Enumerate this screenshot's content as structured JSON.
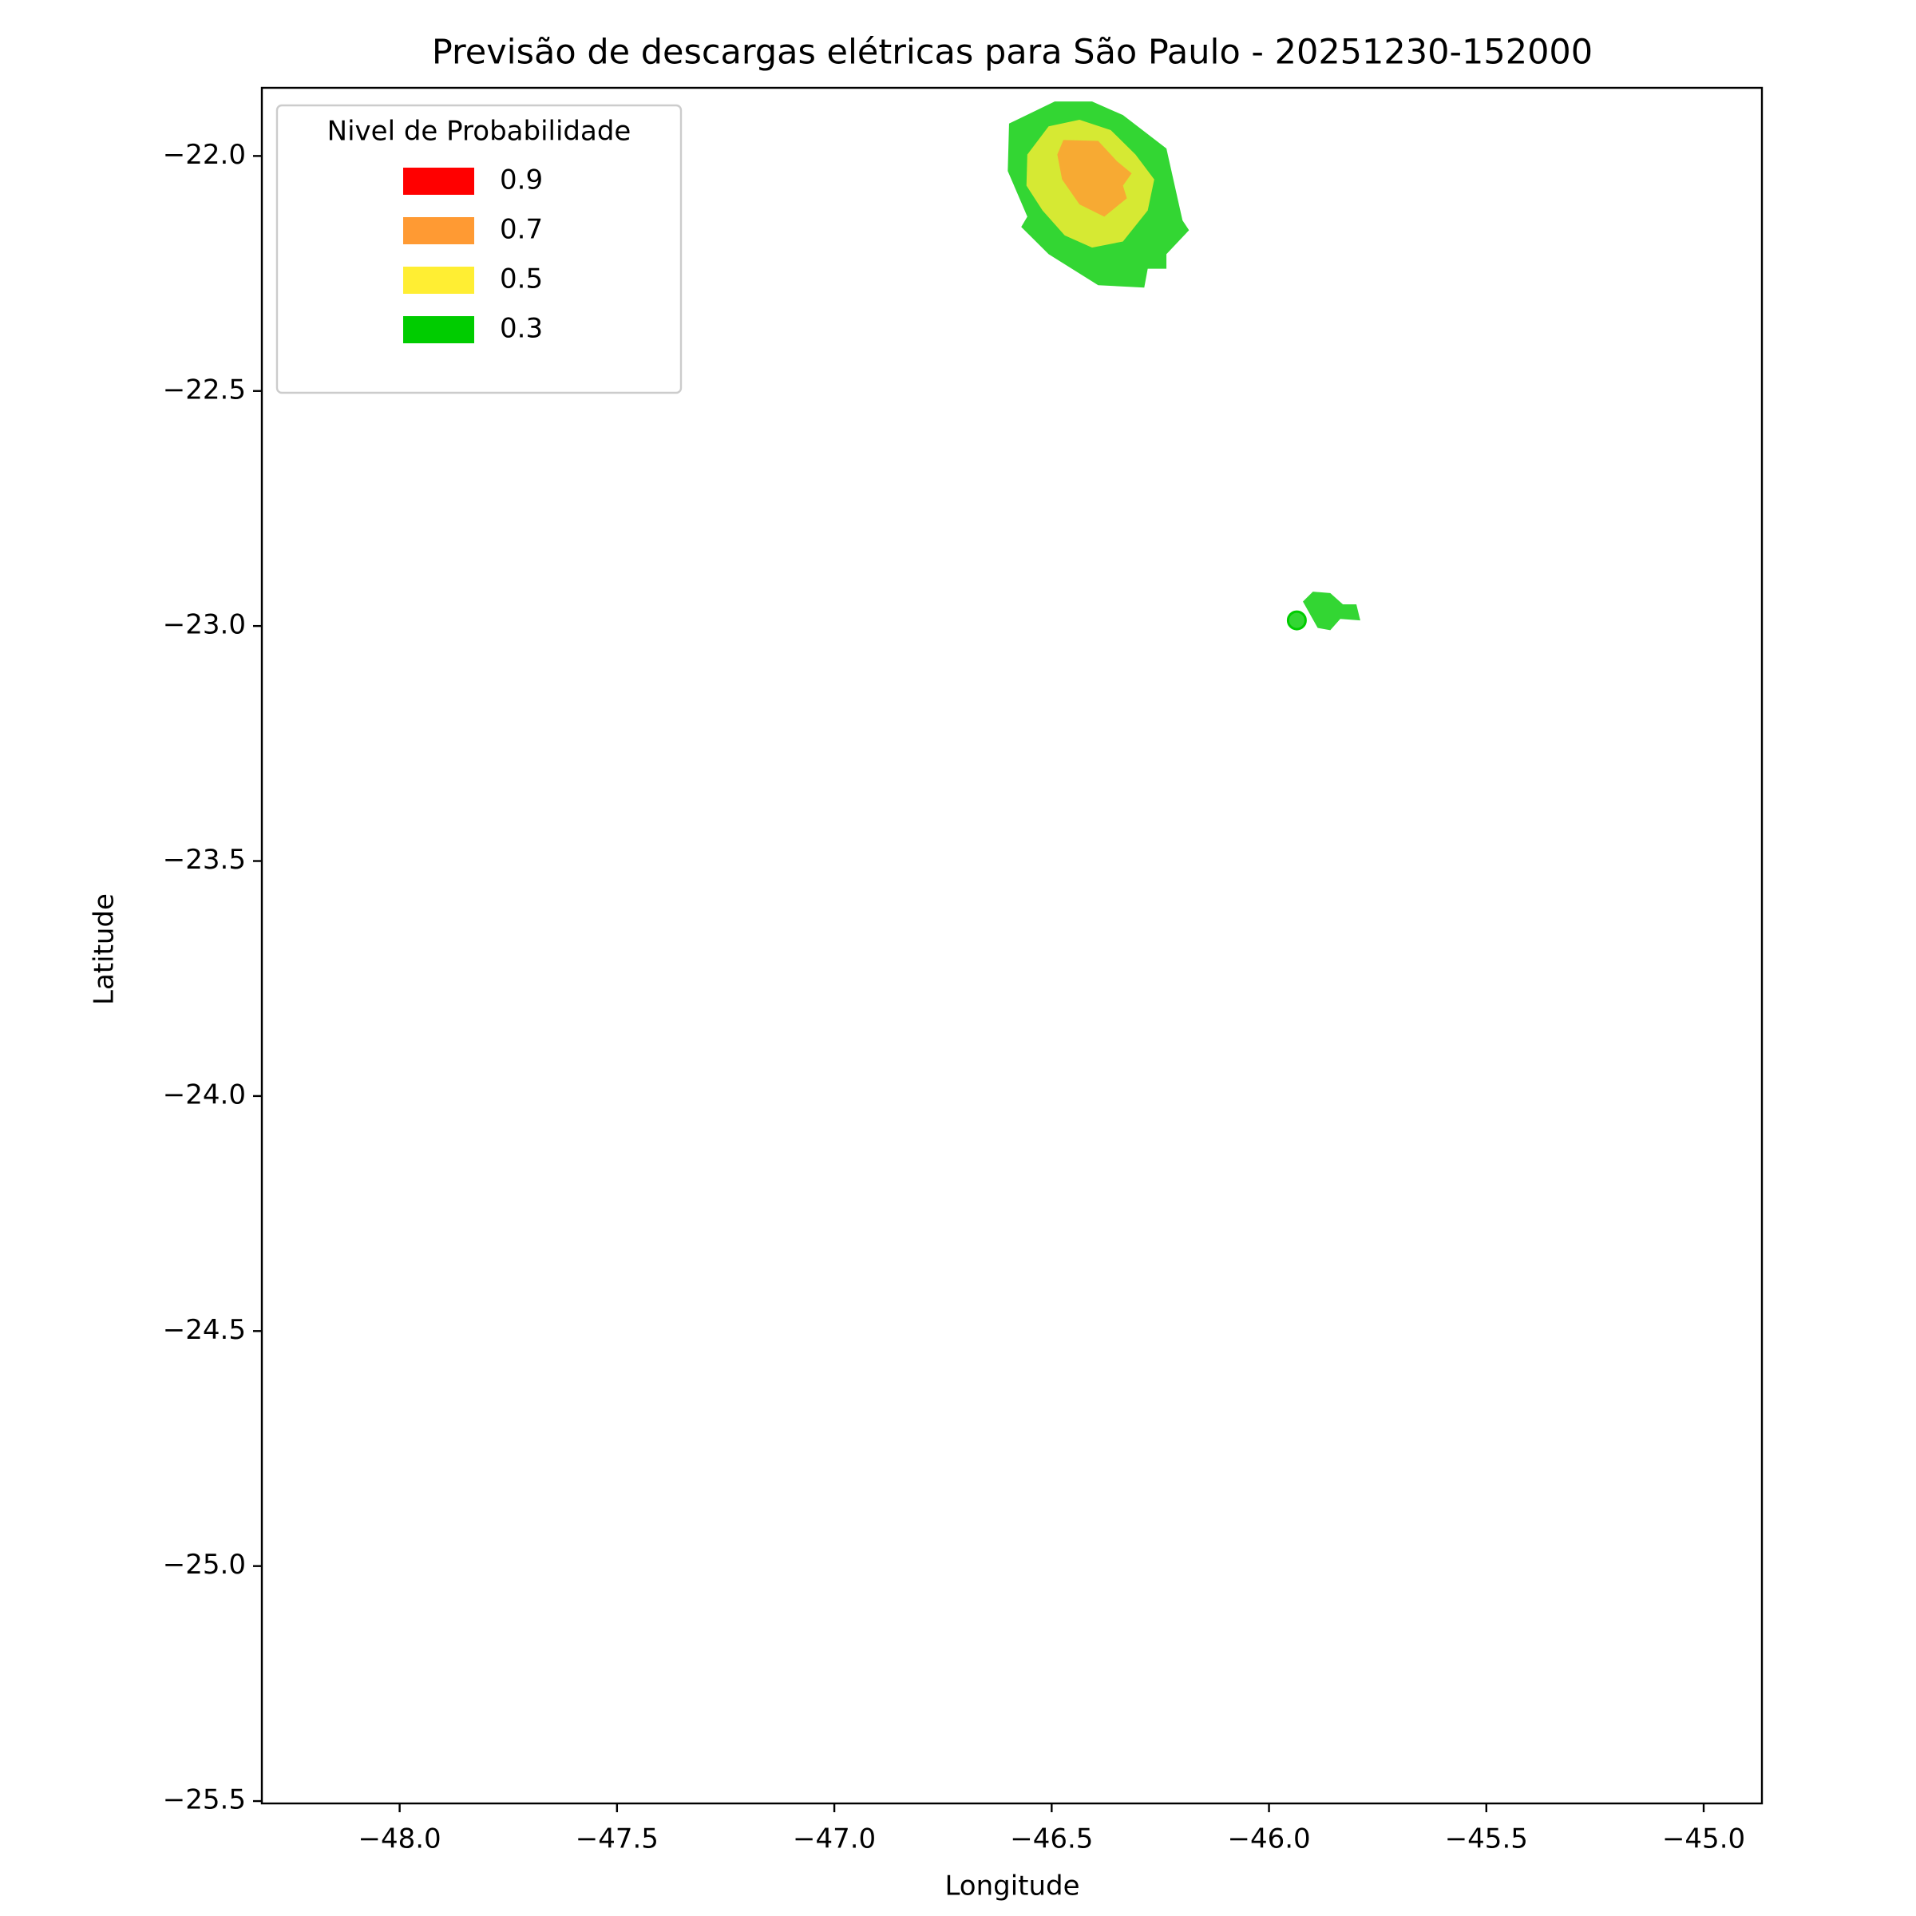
{
  "chart_data": {
    "type": "contour",
    "title": "Previsão de descargas elétricas para São Paulo - 20251230-152000",
    "xlabel": "Longitude",
    "ylabel": "Latitude",
    "xlim": [
      -48.317,
      -44.866
    ],
    "ylim": [
      -25.505,
      -21.855
    ],
    "xticks": [
      {
        "value": -48.0,
        "label": "−48.0"
      },
      {
        "value": -47.5,
        "label": "−47.5"
      },
      {
        "value": -47.0,
        "label": "−47.0"
      },
      {
        "value": -46.5,
        "label": "−46.5"
      },
      {
        "value": -46.0,
        "label": "−46.0"
      },
      {
        "value": -45.5,
        "label": "−45.5"
      },
      {
        "value": -45.0,
        "label": "−45.0"
      }
    ],
    "yticks": [
      {
        "value": -22.0,
        "label": "−22.0"
      },
      {
        "value": -22.5,
        "label": "−22.5"
      },
      {
        "value": -23.0,
        "label": "−23.0"
      },
      {
        "value": -23.5,
        "label": "−23.5"
      },
      {
        "value": -24.0,
        "label": "−24.0"
      },
      {
        "value": -24.5,
        "label": "−24.5"
      },
      {
        "value": -25.0,
        "label": "−25.0"
      },
      {
        "value": -25.5,
        "label": "−25.5"
      }
    ],
    "legend": {
      "title": "Nivel de Probabilidade",
      "loc": "upper left"
    },
    "fill_opacity": 0.8,
    "series": [
      {
        "name": "0.9",
        "color": "#ff0000",
        "polygons": [],
        "points": {
          "x": [],
          "y": []
        }
      },
      {
        "name": "0.7",
        "color": "#ff9a33",
        "polygons": [
          {
            "x": [
              -46.473,
              -46.393,
              -46.35,
              -46.316,
              -46.336,
              -46.327,
              -46.379,
              -46.436,
              -46.476,
              -46.487
            ],
            "y": [
              -21.966,
              -21.968,
              -22.011,
              -22.037,
              -22.063,
              -22.09,
              -22.129,
              -22.103,
              -22.05,
              -21.997
            ]
          }
        ],
        "points": {
          "x": [],
          "y": []
        }
      },
      {
        "name": "0.5",
        "color": "#ffee33",
        "polygons": [
          {
            "x": [
              -46.556,
              -46.507,
              -46.436,
              -46.364,
              -46.307,
              -46.264,
              -46.279,
              -46.336,
              -46.407,
              -46.47,
              -46.521,
              -46.558
            ],
            "y": [
              -21.997,
              -21.937,
              -21.923,
              -21.945,
              -21.997,
              -22.05,
              -22.116,
              -22.182,
              -22.195,
              -22.169,
              -22.116,
              -22.063
            ]
          }
        ],
        "points": {
          "x": [],
          "y": []
        }
      },
      {
        "name": "0.3",
        "color": "#00cc00",
        "polygons": [
          {
            "x": [
              -46.598,
              -46.493,
              -46.407,
              -46.336,
              -46.236,
              -46.199,
              -46.184,
              -46.236,
              -46.236,
              -46.279,
              -46.287,
              -46.393,
              -46.507,
              -46.57,
              -46.556,
              -46.601
            ],
            "y": [
              -21.931,
              -21.884,
              -21.884,
              -21.913,
              -21.984,
              -22.137,
              -22.158,
              -22.209,
              -22.24,
              -22.24,
              -22.28,
              -22.275,
              -22.209,
              -22.151,
              -22.129,
              -22.032
            ]
          },
          {
            "x": [
              -45.922,
              -45.899,
              -45.859,
              -45.83,
              -45.799,
              -45.79,
              -45.836,
              -45.859,
              -45.888
            ],
            "y": [
              -22.948,
              -22.927,
              -22.93,
              -22.954,
              -22.954,
              -22.988,
              -22.985,
              -23.009,
              -23.004
            ]
          }
        ],
        "points": {
          "x": [
            -45.936
          ],
          "y": [
            -22.988
          ]
        }
      }
    ]
  }
}
